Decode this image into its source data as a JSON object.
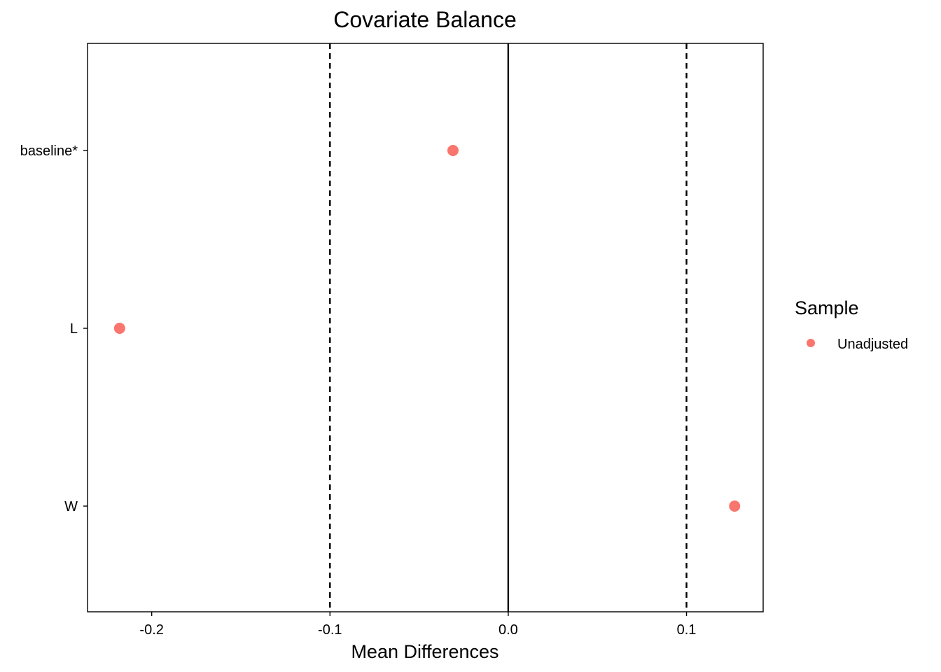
{
  "chart_data": {
    "type": "scatter",
    "title": "Covariate Balance",
    "xlabel": "Mean Differences",
    "ylabel": "",
    "xlim": [
      -0.236,
      0.143
    ],
    "x_ticks": [
      -0.2,
      -0.1,
      0.0,
      0.1
    ],
    "x_tick_labels": [
      "-0.2",
      "-0.1",
      "0.0",
      "0.1"
    ],
    "categories": [
      "baseline*",
      "L",
      "W"
    ],
    "series": [
      {
        "name": "Unadjusted",
        "color": "#F8766D",
        "points": [
          {
            "y": "baseline*",
            "x": -0.031
          },
          {
            "y": "L",
            "x": -0.218
          },
          {
            "y": "W",
            "x": 0.127
          }
        ]
      }
    ],
    "reference_lines": {
      "solid": [
        0.0
      ],
      "dashed": [
        -0.1,
        0.1
      ]
    },
    "legend": {
      "title": "Sample",
      "placement": "right"
    },
    "grid": false
  }
}
